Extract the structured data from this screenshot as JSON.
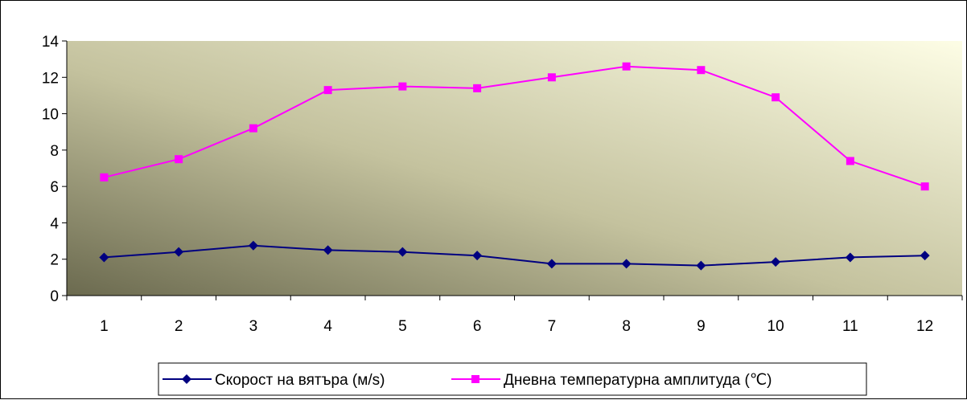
{
  "chart_data": {
    "type": "line",
    "categories": [
      "1",
      "2",
      "3",
      "4",
      "5",
      "6",
      "7",
      "8",
      "9",
      "10",
      "11",
      "12"
    ],
    "series": [
      {
        "name": "Скорост на вятъра (м/s)",
        "color": "#000080",
        "marker": "diamond",
        "values": [
          2.1,
          2.4,
          2.75,
          2.5,
          2.4,
          2.2,
          1.75,
          1.75,
          1.65,
          1.85,
          2.1,
          2.2
        ]
      },
      {
        "name": "Дневна температурна амплитуда (℃)",
        "color": "#FF00FF",
        "marker": "square",
        "values": [
          6.5,
          7.5,
          9.2,
          11.3,
          11.5,
          11.4,
          12.0,
          12.6,
          12.4,
          10.9,
          7.4,
          6.0
        ]
      }
    ],
    "yticks": [
      "0",
      "2",
      "4",
      "6",
      "8",
      "10",
      "12",
      "14"
    ],
    "ylim": [
      0,
      14
    ],
    "legend_position": "bottom",
    "plot_background": "gradient olive-to-cream"
  }
}
